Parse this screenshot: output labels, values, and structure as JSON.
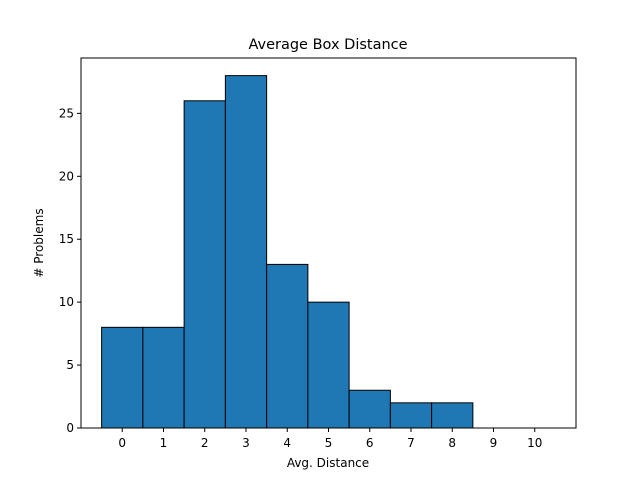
{
  "chart_data": {
    "type": "bar",
    "title": "Average Box Distance",
    "xlabel": "Avg. Distance",
    "ylabel": "# Problems",
    "categories": [
      "0",
      "1",
      "2",
      "3",
      "4",
      "5",
      "6",
      "7",
      "8",
      "9",
      "10"
    ],
    "values": [
      8,
      8,
      26,
      28,
      13,
      10,
      3,
      2,
      2,
      0,
      0
    ],
    "xlim": [
      -1,
      11
    ],
    "ylim": [
      0,
      29.4
    ],
    "yticks": [
      0,
      5,
      10,
      15,
      20,
      25
    ],
    "grid": false,
    "legend": "none",
    "colors": {
      "bar_fill": "#1f77b4",
      "bar_edge": "#000000",
      "axes": "#000000"
    }
  }
}
